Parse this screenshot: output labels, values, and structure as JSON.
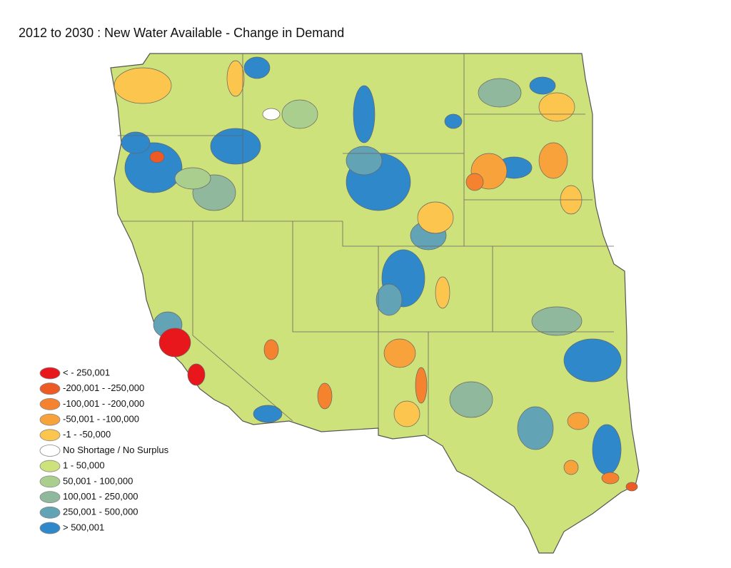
{
  "title": "2012 to 2030 : New Water Available - Change in Demand",
  "legend": [
    {
      "label": "< - 250,001",
      "color": "#e8171b"
    },
    {
      "label": "-200,001 - -250,000",
      "color": "#ee5a24"
    },
    {
      "label": "-100,001 - -200,000",
      "color": "#f4822e"
    },
    {
      "label": "-50,001 - -100,000",
      "color": "#f8a23c"
    },
    {
      "label": "-1 - -50,000",
      "color": "#fcc54e"
    },
    {
      "label": "No Shortage / No Surplus",
      "color": "#ffffff"
    },
    {
      "label": "1 - 50,000",
      "color": "#cde27a"
    },
    {
      "label": "50,001 - 100,000",
      "color": "#a9ce8e"
    },
    {
      "label": "100,001 - 250,000",
      "color": "#8fb89c"
    },
    {
      "label": "250,001 - 500,000",
      "color": "#63a3b6"
    },
    {
      "label": "> 500,001",
      "color": "#2e88c9"
    }
  ]
}
